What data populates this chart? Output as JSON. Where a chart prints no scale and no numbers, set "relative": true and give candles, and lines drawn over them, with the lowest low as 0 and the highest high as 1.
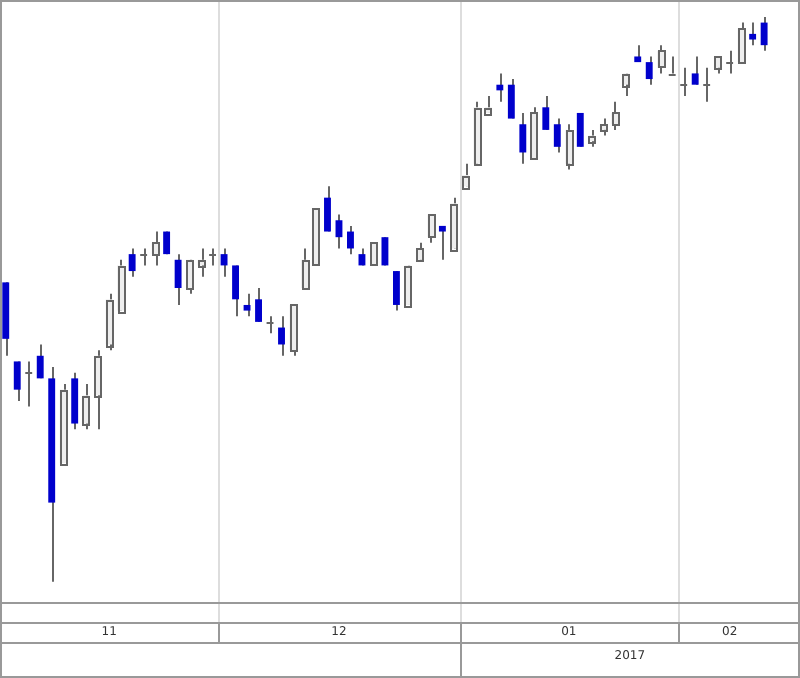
{
  "chart_data": {
    "type": "candlestick",
    "relative": true,
    "grid": "x",
    "categories": [
      null,
      null,
      null,
      null,
      null,
      null,
      null,
      null,
      null,
      "11",
      null,
      null,
      null,
      null,
      null,
      null,
      null,
      null,
      null,
      null,
      null,
      null,
      null,
      null,
      null,
      null,
      null,
      null,
      null,
      "12",
      null,
      null,
      null,
      null,
      null,
      null,
      null,
      null,
      null,
      null,
      null,
      null,
      null,
      null,
      null,
      null,
      null,
      null,
      null,
      "01",
      null,
      null,
      null,
      null,
      null,
      null,
      null,
      null,
      null,
      null,
      null,
      null,
      null,
      "02",
      null,
      null,
      null
    ],
    "ohlc": [
      [
        0.53,
        0.53,
        0.4,
        0.43
      ],
      [
        0.39,
        0.39,
        0.32,
        0.34
      ],
      [
        0.37,
        0.39,
        0.31,
        0.37
      ],
      [
        0.4,
        0.42,
        0.36,
        0.36
      ],
      [
        0.36,
        0.38,
        0,
        0.14
      ],
      [
        0.21,
        0.35,
        0.21,
        0.34
      ],
      [
        0.36,
        0.37,
        0.27,
        0.28
      ],
      [
        0.28,
        0.35,
        0.27,
        0.33
      ],
      [
        0.33,
        0.41,
        0.27,
        0.4
      ],
      [
        0.42,
        0.51,
        0.41,
        0.5
      ],
      [
        0.48,
        0.57,
        0.48,
        0.56
      ],
      [
        0.58,
        0.59,
        0.54,
        0.55
      ],
      [
        0.58,
        0.59,
        0.56,
        0.58
      ],
      [
        0.58,
        0.62,
        0.56,
        0.6
      ],
      [
        0.62,
        0.62,
        0.58,
        0.58
      ],
      [
        0.57,
        0.58,
        0.49,
        0.52
      ],
      [
        0.52,
        0.57,
        0.51,
        0.57
      ],
      [
        0.56,
        0.59,
        0.54,
        0.57
      ],
      [
        0.58,
        0.59,
        0.56,
        0.58
      ],
      [
        0.58,
        0.59,
        0.54,
        0.56
      ],
      [
        0.56,
        0.56,
        0.47,
        0.5
      ],
      [
        0.49,
        0.51,
        0.47,
        0.48
      ],
      [
        0.5,
        0.52,
        0.46,
        0.46
      ],
      [
        0.46,
        0.47,
        0.44,
        0.46
      ],
      [
        0.45,
        0.47,
        0.4,
        0.42
      ],
      [
        0.41,
        0.49,
        0.4,
        0.49
      ],
      [
        0.52,
        0.59,
        0.52,
        0.57
      ],
      [
        0.56,
        0.66,
        0.56,
        0.66
      ],
      [
        0.68,
        0.7,
        0.62,
        0.62
      ],
      [
        0.64,
        0.65,
        0.59,
        0.61
      ],
      [
        0.62,
        0.63,
        0.58,
        0.59
      ],
      [
        0.58,
        0.59,
        0.56,
        0.56
      ],
      [
        0.56,
        0.6,
        0.56,
        0.6
      ],
      [
        0.61,
        0.61,
        0.56,
        0.56
      ],
      [
        0.55,
        0.55,
        0.48,
        0.49
      ],
      [
        0.49,
        0.56,
        0.49,
        0.56
      ],
      [
        0.57,
        0.6,
        0.57,
        0.59
      ],
      [
        0.61,
        0.65,
        0.6,
        0.65
      ],
      [
        0.63,
        0.63,
        0.57,
        0.62
      ],
      [
        0.59,
        0.68,
        0.59,
        0.67
      ],
      [
        0.7,
        0.74,
        0.7,
        0.72
      ],
      [
        0.74,
        0.85,
        0.74,
        0.84
      ],
      [
        0.83,
        0.86,
        0.83,
        0.84
      ],
      [
        0.88,
        0.9,
        0.85,
        0.87
      ],
      [
        0.88,
        0.89,
        0.82,
        0.82
      ],
      [
        0.81,
        0.83,
        0.74,
        0.76
      ],
      [
        0.75,
        0.84,
        0.75,
        0.83
      ],
      [
        0.84,
        0.86,
        0.8,
        0.8
      ],
      [
        0.81,
        0.82,
        0.76,
        0.77
      ],
      [
        0.74,
        0.81,
        0.73,
        0.8
      ],
      [
        0.83,
        0.83,
        0.77,
        0.77
      ],
      [
        0.78,
        0.8,
        0.77,
        0.79
      ],
      [
        0.8,
        0.82,
        0.79,
        0.81
      ],
      [
        0.81,
        0.85,
        0.8,
        0.83
      ],
      [
        0.88,
        0.9,
        0.86,
        0.9
      ],
      [
        0.93,
        0.95,
        0.92,
        0.92
      ],
      [
        0.92,
        0.93,
        0.88,
        0.89
      ],
      [
        0.91,
        0.95,
        0.9,
        0.94
      ],
      [
        0.9,
        0.93,
        0.9,
        0.9
      ],
      [
        0.88,
        0.91,
        0.86,
        0.88
      ],
      [
        0.9,
        0.93,
        0.88,
        0.88
      ],
      [
        0.88,
        0.91,
        0.85,
        0.88
      ],
      [
        0.91,
        0.93,
        0.9,
        0.93
      ],
      [
        0.92,
        0.94,
        0.9,
        0.92
      ],
      [
        0.92,
        0.99,
        0.92,
        0.98
      ],
      [
        0.97,
        0.99,
        0.95,
        0.96
      ],
      [
        0.99,
        1,
        0.94,
        0.95
      ]
    ],
    "annotations": [
      "2017"
    ]
  }
}
